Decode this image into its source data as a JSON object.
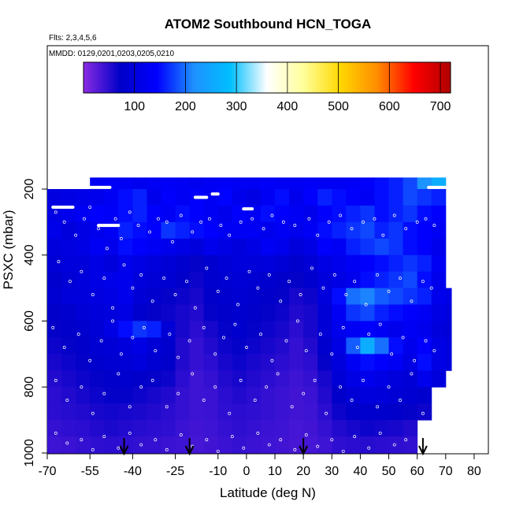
{
  "chart_data": {
    "type": "heatmap",
    "title": "ATOM2 Southbound HCN_TOGA",
    "subtitle_flights": "Flts: 2,3,4,5,6",
    "subtitle_dates": "MMDD: 0129,0201,0203,0205,0210",
    "xlabel": "Latitude (deg N)",
    "ylabel": "PSXC (mbar)",
    "xlim": [
      -70,
      85
    ],
    "ylim": [
      1000,
      200
    ],
    "x_ticks": [
      -70,
      -55,
      -40,
      -25,
      -10,
      0,
      10,
      20,
      30,
      40,
      50,
      60,
      70,
      80
    ],
    "y_ticks": [
      200,
      400,
      600,
      800,
      1000
    ],
    "colorbar": {
      "range": [
        0,
        720
      ],
      "ticks": [
        100,
        200,
        300,
        400,
        500,
        600,
        700
      ],
      "stops": [
        "#8a2be2",
        "#0000c8",
        "#0000ff",
        "#1e90ff",
        "#00bfff",
        "#ffffff",
        "#ffff99",
        "#ffd700",
        "#ff8c00",
        "#ff0000",
        "#b00000"
      ]
    },
    "arrow_latitudes": [
      -43,
      -20,
      20,
      62
    ],
    "grid": {
      "lat_edges": [
        -70,
        -65,
        -60,
        -55,
        -50,
        -45,
        -40,
        -35,
        -30,
        -25,
        -20,
        -15,
        -10,
        -5,
        0,
        5,
        10,
        15,
        20,
        25,
        30,
        35,
        40,
        45,
        50,
        55,
        60,
        65,
        70,
        72
      ],
      "pressure_edges": [
        165,
        200,
        250,
        300,
        350,
        400,
        450,
        500,
        550,
        600,
        650,
        700,
        750,
        800,
        850,
        900,
        950,
        1000
      ],
      "values": [
        [
          null,
          null,
          null,
          130,
          135,
          130,
          125,
          130,
          135,
          130,
          125,
          130,
          135,
          130,
          130,
          135,
          130,
          130,
          135,
          130,
          130,
          135,
          140,
          150,
          160,
          180,
          220,
          260,
          null
        ],
        [
          105,
          110,
          115,
          120,
          130,
          150,
          160,
          120,
          140,
          130,
          140,
          130,
          145,
          120,
          110,
          130,
          150,
          120,
          140,
          160,
          150,
          140,
          130,
          150,
          160,
          180,
          170,
          160,
          null
        ],
        [
          110,
          120,
          130,
          140,
          135,
          150,
          160,
          140,
          130,
          150,
          140,
          130,
          120,
          140,
          130,
          150,
          140,
          130,
          120,
          140,
          150,
          160,
          170,
          150,
          160,
          170,
          150,
          140,
          null
        ],
        [
          115,
          100,
          110,
          120,
          130,
          160,
          150,
          140,
          170,
          160,
          150,
          140,
          130,
          130,
          130,
          120,
          130,
          120,
          130,
          150,
          160,
          170,
          180,
          160,
          170,
          150,
          140,
          130,
          null
        ],
        [
          100,
          105,
          110,
          130,
          120,
          150,
          140,
          130,
          120,
          110,
          100,
          120,
          110,
          100,
          110,
          130,
          120,
          100,
          110,
          140,
          130,
          160,
          170,
          180,
          170,
          150,
          140,
          120,
          null
        ],
        [
          90,
          100,
          95,
          110,
          100,
          120,
          110,
          100,
          90,
          80,
          70,
          80,
          90,
          100,
          95,
          100,
          90,
          80,
          90,
          110,
          120,
          130,
          140,
          150,
          160,
          170,
          160,
          130,
          null
        ],
        [
          80,
          90,
          100,
          110,
          115,
          120,
          100,
          90,
          85,
          75,
          65,
          80,
          85,
          90,
          85,
          80,
          75,
          70,
          80,
          100,
          110,
          120,
          150,
          160,
          170,
          180,
          150,
          120,
          null
        ],
        [
          85,
          95,
          100,
          105,
          110,
          120,
          90,
          80,
          70,
          65,
          60,
          75,
          80,
          85,
          80,
          75,
          70,
          60,
          65,
          100,
          150,
          200,
          210,
          190,
          180,
          170,
          160,
          120,
          110
        ],
        [
          75,
          80,
          90,
          95,
          100,
          110,
          80,
          70,
          65,
          60,
          55,
          70,
          75,
          80,
          75,
          70,
          65,
          55,
          60,
          90,
          130,
          170,
          180,
          160,
          150,
          140,
          130,
          110,
          100
        ],
        [
          70,
          75,
          80,
          90,
          110,
          150,
          170,
          160,
          90,
          60,
          50,
          60,
          70,
          80,
          70,
          65,
          60,
          50,
          60,
          90,
          120,
          130,
          140,
          130,
          120,
          130,
          120,
          100,
          90
        ],
        [
          65,
          70,
          75,
          85,
          90,
          100,
          110,
          90,
          80,
          55,
          45,
          55,
          65,
          70,
          65,
          60,
          55,
          45,
          55,
          80,
          110,
          190,
          260,
          200,
          150,
          120,
          140,
          110,
          100
        ],
        [
          60,
          65,
          70,
          80,
          85,
          90,
          100,
          85,
          75,
          55,
          45,
          50,
          60,
          65,
          60,
          55,
          50,
          45,
          50,
          70,
          100,
          130,
          150,
          140,
          130,
          110,
          150,
          110,
          100
        ],
        [
          55,
          60,
          65,
          70,
          75,
          80,
          75,
          70,
          65,
          50,
          40,
          45,
          55,
          60,
          55,
          50,
          45,
          40,
          45,
          60,
          90,
          110,
          120,
          110,
          100,
          90,
          120,
          100,
          null
        ],
        [
          50,
          55,
          60,
          65,
          70,
          70,
          65,
          60,
          55,
          45,
          40,
          42,
          50,
          55,
          50,
          45,
          42,
          38,
          42,
          55,
          75,
          90,
          100,
          95,
          90,
          85,
          80,
          null,
          null
        ],
        [
          50,
          52,
          55,
          60,
          62,
          60,
          58,
          55,
          50,
          45,
          40,
          42,
          48,
          50,
          48,
          45,
          42,
          38,
          40,
          50,
          65,
          75,
          80,
          78,
          75,
          70,
          65,
          null,
          null
        ],
        [
          45,
          48,
          50,
          55,
          58,
          55,
          52,
          50,
          48,
          42,
          38,
          40,
          45,
          48,
          45,
          42,
          40,
          36,
          38,
          45,
          55,
          60,
          65,
          62,
          60,
          55,
          null,
          null,
          null
        ],
        [
          40,
          42,
          45,
          48,
          50,
          48,
          46,
          45,
          42,
          40,
          36,
          38,
          42,
          45,
          42,
          40,
          38,
          35,
          36,
          40,
          48,
          50,
          52,
          50,
          48,
          46,
          null,
          null,
          null
        ]
      ]
    },
    "data_points": [
      [
        -67,
        270
      ],
      [
        -64,
        300
      ],
      [
        -60,
        340
      ],
      [
        -57,
        290
      ],
      [
        -55,
        255
      ],
      [
        -52,
        320
      ],
      [
        -49,
        380
      ],
      [
        -46,
        290
      ],
      [
        -44,
        350
      ],
      [
        -41,
        270
      ],
      [
        -38,
        310
      ],
      [
        -34,
        330
      ],
      [
        -31,
        290
      ],
      [
        -28,
        300
      ],
      [
        -26,
        360
      ],
      [
        -23,
        280
      ],
      [
        -19,
        330
      ],
      [
        -16,
        300
      ],
      [
        -13,
        290
      ],
      [
        -9,
        310
      ],
      [
        -6,
        340
      ],
      [
        -2,
        300
      ],
      [
        2,
        290
      ],
      [
        6,
        320
      ],
      [
        9,
        280
      ],
      [
        13,
        300
      ],
      [
        17,
        310
      ],
      [
        22,
        290
      ],
      [
        25,
        340
      ],
      [
        29,
        300
      ],
      [
        33,
        280
      ],
      [
        37,
        320
      ],
      [
        41,
        300
      ],
      [
        45,
        290
      ],
      [
        48,
        340
      ],
      [
        52,
        280
      ],
      [
        56,
        320
      ],
      [
        60,
        300
      ],
      [
        63,
        290
      ],
      [
        66,
        310
      ],
      [
        -66,
        420
      ],
      [
        -62,
        480
      ],
      [
        -58,
        450
      ],
      [
        -54,
        520
      ],
      [
        -50,
        470
      ],
      [
        -47,
        560
      ],
      [
        -43,
        430
      ],
      [
        -40,
        500
      ],
      [
        -37,
        460
      ],
      [
        -33,
        540
      ],
      [
        -29,
        470
      ],
      [
        -25,
        520
      ],
      [
        -21,
        480
      ],
      [
        -18,
        560
      ],
      [
        -14,
        440
      ],
      [
        -10,
        510
      ],
      [
        -7,
        470
      ],
      [
        -3,
        550
      ],
      [
        1,
        450
      ],
      [
        4,
        500
      ],
      [
        8,
        460
      ],
      [
        12,
        540
      ],
      [
        15,
        480
      ],
      [
        19,
        520
      ],
      [
        23,
        440
      ],
      [
        27,
        500
      ],
      [
        31,
        460
      ],
      [
        35,
        520
      ],
      [
        38,
        480
      ],
      [
        42,
        550
      ],
      [
        46,
        460
      ],
      [
        50,
        510
      ],
      [
        54,
        470
      ],
      [
        58,
        540
      ],
      [
        62,
        480
      ],
      [
        65,
        500
      ],
      [
        -68,
        620
      ],
      [
        -64,
        680
      ],
      [
        -59,
        640
      ],
      [
        -55,
        720
      ],
      [
        -51,
        660
      ],
      [
        -47,
        600
      ],
      [
        -44,
        700
      ],
      [
        -40,
        650
      ],
      [
        -36,
        620
      ],
      [
        -32,
        690
      ],
      [
        -27,
        640
      ],
      [
        -24,
        710
      ],
      [
        -20,
        660
      ],
      [
        -15,
        620
      ],
      [
        -11,
        700
      ],
      [
        -8,
        650
      ],
      [
        -4,
        610
      ],
      [
        0,
        680
      ],
      [
        5,
        640
      ],
      [
        9,
        720
      ],
      [
        14,
        660
      ],
      [
        18,
        600
      ],
      [
        21,
        690
      ],
      [
        26,
        640
      ],
      [
        30,
        700
      ],
      [
        34,
        620
      ],
      [
        39,
        680
      ],
      [
        43,
        640
      ],
      [
        47,
        610
      ],
      [
        51,
        700
      ],
      [
        55,
        650
      ],
      [
        59,
        720
      ],
      [
        63,
        660
      ],
      [
        66,
        690
      ],
      [
        -67,
        780
      ],
      [
        -63,
        840
      ],
      [
        -58,
        800
      ],
      [
        -54,
        880
      ],
      [
        -50,
        820
      ],
      [
        -45,
        760
      ],
      [
        -41,
        860
      ],
      [
        -37,
        800
      ],
      [
        -33,
        780
      ],
      [
        -28,
        860
      ],
      [
        -24,
        820
      ],
      [
        -19,
        760
      ],
      [
        -15,
        840
      ],
      [
        -11,
        800
      ],
      [
        -6,
        880
      ],
      [
        -2,
        780
      ],
      [
        3,
        840
      ],
      [
        7,
        800
      ],
      [
        11,
        760
      ],
      [
        16,
        860
      ],
      [
        20,
        820
      ],
      [
        24,
        780
      ],
      [
        28,
        880
      ],
      [
        33,
        800
      ],
      [
        37,
        840
      ],
      [
        41,
        780
      ],
      [
        46,
        860
      ],
      [
        50,
        800
      ],
      [
        54,
        840
      ],
      [
        58,
        760
      ],
      [
        62,
        880
      ],
      [
        66,
        820
      ],
      [
        -67,
        940
      ],
      [
        -63,
        970
      ],
      [
        -58,
        960
      ],
      [
        -54,
        990
      ],
      [
        -50,
        950
      ],
      [
        -45,
        985
      ],
      [
        -41,
        940
      ],
      [
        -37,
        975
      ],
      [
        -32,
        960
      ],
      [
        -28,
        990
      ],
      [
        -23,
        945
      ],
      [
        -19,
        980
      ],
      [
        -14,
        960
      ],
      [
        -10,
        995
      ],
      [
        -5,
        950
      ],
      [
        -1,
        985
      ],
      [
        4,
        940
      ],
      [
        8,
        975
      ],
      [
        12,
        960
      ],
      [
        17,
        990
      ],
      [
        21,
        945
      ],
      [
        25,
        980
      ],
      [
        30,
        960
      ],
      [
        34,
        995
      ],
      [
        38,
        950
      ],
      [
        43,
        985
      ],
      [
        47,
        940
      ],
      [
        52,
        975
      ],
      [
        56,
        960
      ],
      [
        61,
        990
      ],
      [
        64,
        950
      ]
    ],
    "flight_segments": [
      [
        [
          -68,
          255
        ],
        [
          -61,
          255
        ]
      ],
      [
        [
          -55,
          195
        ],
        [
          -48,
          195
        ]
      ],
      [
        [
          -52,
          310
        ],
        [
          -45,
          310
        ]
      ],
      [
        [
          -18,
          225
        ],
        [
          -14,
          225
        ]
      ],
      [
        [
          -12,
          215
        ],
        [
          -10,
          215
        ]
      ],
      [
        [
          -1,
          260
        ],
        [
          2,
          260
        ]
      ],
      [
        [
          64,
          195
        ],
        [
          70,
          195
        ]
      ]
    ]
  }
}
